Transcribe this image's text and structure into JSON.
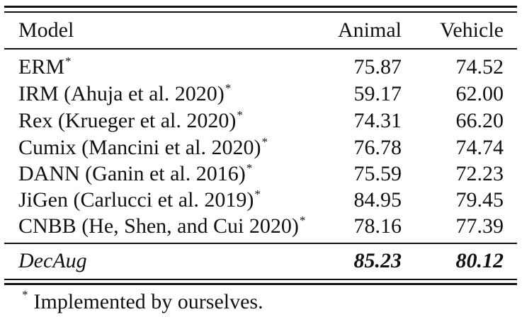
{
  "table": {
    "headers": {
      "model": "Model",
      "animal": "Animal",
      "vehicle": "Vehicle"
    },
    "rows": [
      {
        "model": "ERM",
        "mark": "*",
        "animal": "75.87",
        "vehicle": "74.52"
      },
      {
        "model": "IRM (Ahuja et al. 2020)",
        "mark": "*",
        "animal": "59.17",
        "vehicle": "62.00"
      },
      {
        "model": "Rex (Krueger et al. 2020)",
        "mark": "*",
        "animal": "74.31",
        "vehicle": "66.20"
      },
      {
        "model": "Cumix (Mancini et al. 2020)",
        "mark": "*",
        "animal": "76.78",
        "vehicle": "74.74"
      },
      {
        "model": "DANN (Ganin et al. 2016)",
        "mark": "*",
        "animal": "75.59",
        "vehicle": "72.23"
      },
      {
        "model": "JiGen (Carlucci et al. 2019)",
        "mark": "*",
        "animal": "84.95",
        "vehicle": "79.45"
      },
      {
        "model": "CNBB (He, Shen, and Cui 2020)",
        "mark": "*",
        "animal": "78.16",
        "vehicle": "77.39"
      }
    ],
    "ours": {
      "model": "DecAug",
      "animal": "85.23",
      "vehicle": "80.12"
    }
  },
  "footnote": {
    "mark": "*",
    "text": "Implemented by ourselves."
  }
}
